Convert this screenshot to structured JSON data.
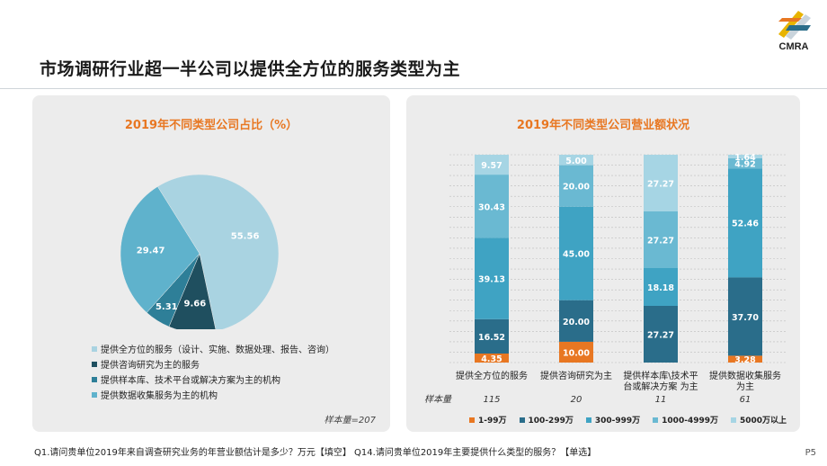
{
  "page": {
    "title": "市场调研行业超一半公司以提供全方位的服务类型为主",
    "logo_text": "CMRA",
    "footnote": "Q1.请问贵单位2019年来自调查研究业务的年营业额估计是多少？万元【填空】 Q14.请问贵单位2019年主要提供什么类型的服务？【单选】",
    "page_number": "P5"
  },
  "colors": {
    "title_orange": "#e87722",
    "rev_1_99": "#e87722",
    "rev_100_299": "#2a6d8a",
    "rev_300_999": "#3fa3c3",
    "rev_1000_4999": "#6ab9d2",
    "rev_5000_plus": "#a6d5e4",
    "pie_full": "#a9d3e1",
    "pie_consult": "#1f4f5f",
    "pie_platform": "#2e7f98",
    "pie_data": "#5fb2cc"
  },
  "chart_data": [
    {
      "type": "pie",
      "title": "2019年不同类型公司占比（%）",
      "slices": [
        {
          "label": "提供全方位的服务（设计、实施、数据处理、报告、咨询）",
          "value": 55.56,
          "value_label": "55.56",
          "color": "#a9d3e1",
          "text_color": "#ffffff"
        },
        {
          "label": "提供咨询研究为主的服务",
          "value": 9.66,
          "value_label": "9.66",
          "color": "#1f4f5f",
          "text_color": "#ffffff"
        },
        {
          "label": "提供样本库、技术平台或解决方案为主的机构",
          "value": 5.31,
          "value_label": "5.31",
          "color": "#2e7f98",
          "text_color": "#ffffff"
        },
        {
          "label": "提供数据收集服务为主的机构",
          "value": 29.47,
          "value_label": "29.47",
          "color": "#5fb2cc",
          "text_color": "#ffffff"
        }
      ],
      "sample_note": "样本量=207"
    },
    {
      "type": "bar",
      "stacked": true,
      "title": "2019年不同类型公司营业额状况",
      "categories": [
        "提供全方位的服务",
        "提供咨询研究为主",
        "提供样本库\\技术平台或解决方案 为主",
        "提供数据收集服务为主"
      ],
      "category_lines": [
        [
          "提供全方位的服务"
        ],
        [
          "提供咨询研究为主"
        ],
        [
          "提供样本库\\技术平",
          "台或解决方案 为主"
        ],
        [
          "提供数据收集服务",
          "为主"
        ]
      ],
      "series": [
        {
          "name": "1-99万",
          "color": "#e87722",
          "values": [
            4.35,
            10.0,
            0.0,
            3.28
          ],
          "labels": [
            "4.35",
            "10.00",
            "0.00",
            "3.28"
          ]
        },
        {
          "name": "100-299万",
          "color": "#2a6d8a",
          "values": [
            16.52,
            20.0,
            27.27,
            37.7
          ],
          "labels": [
            "16.52",
            "20.00",
            "27.27",
            "37.70"
          ]
        },
        {
          "name": "300-999万",
          "color": "#3fa3c3",
          "values": [
            39.13,
            45.0,
            18.18,
            52.46
          ],
          "labels": [
            "39.13",
            "45.00",
            "18.18",
            "52.46"
          ]
        },
        {
          "name": "1000-4999万",
          "color": "#6ab9d2",
          "values": [
            30.43,
            20.0,
            27.27,
            4.92
          ],
          "labels": [
            "30.43",
            "20.00",
            "27.27",
            "4.92"
          ]
        },
        {
          "name": "5000万以上",
          "color": "#a6d5e4",
          "values": [
            9.57,
            5.0,
            27.27,
            1.64
          ],
          "labels": [
            "9.57",
            "5.00",
            "27.27",
            "1.64"
          ]
        }
      ],
      "ylim": [
        0,
        100
      ],
      "grid": true,
      "legend_position": "bottom",
      "sample_label": "样本量",
      "sample_sizes": [
        "115",
        "20",
        "11",
        "61"
      ]
    }
  ]
}
